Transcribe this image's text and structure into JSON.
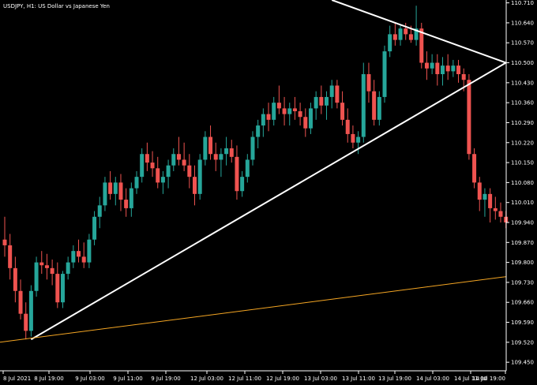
{
  "chart_data": {
    "type": "candlestick",
    "title": "USDJPY, H1:  US Dollar vs Japanese Yen",
    "ylim": [
      109.42,
      110.72
    ],
    "y_ticks": [
      "110.710",
      "110.640",
      "110.570",
      "110.500",
      "110.430",
      "110.360",
      "110.290",
      "110.220",
      "110.150",
      "110.080",
      "110.010",
      "109.940",
      "109.870",
      "109.800",
      "109.730",
      "109.660",
      "109.590",
      "109.520",
      "109.450"
    ],
    "x_ticks": [
      "8 Jul 2021",
      "8 Jul 19:00",
      "9 Jul 03:00",
      "9 Jul 11:00",
      "9 Jul 19:00",
      "12 Jul 03:00",
      "12 Jul 11:00",
      "12 Jul 19:00",
      "13 Jul 03:00",
      "13 Jul 11:00",
      "13 Jul 19:00",
      "14 Jul 03:00",
      "14 Jul 11:00",
      "14 Jul 19:00"
    ],
    "colors": {
      "up": "#26a69a",
      "down": "#ef5350",
      "trendline": "#ffffff",
      "support": "#f5a623",
      "axis": "#ffffff",
      "background": "#000000"
    },
    "candles": [
      {
        "o": 109.88,
        "h": 109.96,
        "l": 109.82,
        "c": 109.86
      },
      {
        "o": 109.86,
        "h": 109.9,
        "l": 109.74,
        "c": 109.78
      },
      {
        "o": 109.78,
        "h": 109.82,
        "l": 109.66,
        "c": 109.7
      },
      {
        "o": 109.7,
        "h": 109.74,
        "l": 109.6,
        "c": 109.62
      },
      {
        "o": 109.62,
        "h": 109.66,
        "l": 109.53,
        "c": 109.56
      },
      {
        "o": 109.56,
        "h": 109.72,
        "l": 109.54,
        "c": 109.7
      },
      {
        "o": 109.7,
        "h": 109.82,
        "l": 109.68,
        "c": 109.8
      },
      {
        "o": 109.8,
        "h": 109.84,
        "l": 109.76,
        "c": 109.79
      },
      {
        "o": 109.79,
        "h": 109.83,
        "l": 109.74,
        "c": 109.78
      },
      {
        "o": 109.78,
        "h": 109.81,
        "l": 109.72,
        "c": 109.76
      },
      {
        "o": 109.76,
        "h": 109.8,
        "l": 109.64,
        "c": 109.66
      },
      {
        "o": 109.66,
        "h": 109.77,
        "l": 109.64,
        "c": 109.76
      },
      {
        "o": 109.76,
        "h": 109.82,
        "l": 109.74,
        "c": 109.8
      },
      {
        "o": 109.8,
        "h": 109.86,
        "l": 109.78,
        "c": 109.84
      },
      {
        "o": 109.84,
        "h": 109.88,
        "l": 109.8,
        "c": 109.82
      },
      {
        "o": 109.82,
        "h": 109.87,
        "l": 109.78,
        "c": 109.8
      },
      {
        "o": 109.8,
        "h": 109.9,
        "l": 109.78,
        "c": 109.88
      },
      {
        "o": 109.88,
        "h": 109.98,
        "l": 109.86,
        "c": 109.96
      },
      {
        "o": 109.96,
        "h": 110.03,
        "l": 109.92,
        "c": 110.0
      },
      {
        "o": 110.0,
        "h": 110.1,
        "l": 109.98,
        "c": 110.08
      },
      {
        "o": 110.08,
        "h": 110.12,
        "l": 110.02,
        "c": 110.04
      },
      {
        "o": 110.04,
        "h": 110.1,
        "l": 110.0,
        "c": 110.08
      },
      {
        "o": 110.08,
        "h": 110.11,
        "l": 109.98,
        "c": 110.02
      },
      {
        "o": 110.02,
        "h": 110.06,
        "l": 109.96,
        "c": 109.99
      },
      {
        "o": 109.99,
        "h": 110.08,
        "l": 109.96,
        "c": 110.06
      },
      {
        "o": 110.06,
        "h": 110.12,
        "l": 110.04,
        "c": 110.1
      },
      {
        "o": 110.1,
        "h": 110.2,
        "l": 110.08,
        "c": 110.18
      },
      {
        "o": 110.18,
        "h": 110.22,
        "l": 110.12,
        "c": 110.15
      },
      {
        "o": 110.15,
        "h": 110.19,
        "l": 110.1,
        "c": 110.13
      },
      {
        "o": 110.13,
        "h": 110.17,
        "l": 110.06,
        "c": 110.08
      },
      {
        "o": 110.08,
        "h": 110.12,
        "l": 110.04,
        "c": 110.1
      },
      {
        "o": 110.1,
        "h": 110.16,
        "l": 110.06,
        "c": 110.14
      },
      {
        "o": 110.14,
        "h": 110.2,
        "l": 110.12,
        "c": 110.18
      },
      {
        "o": 110.18,
        "h": 110.24,
        "l": 110.14,
        "c": 110.16
      },
      {
        "o": 110.16,
        "h": 110.22,
        "l": 110.12,
        "c": 110.14
      },
      {
        "o": 110.14,
        "h": 110.18,
        "l": 110.06,
        "c": 110.1
      },
      {
        "o": 110.1,
        "h": 110.14,
        "l": 110.0,
        "c": 110.04
      },
      {
        "o": 110.04,
        "h": 110.18,
        "l": 110.02,
        "c": 110.16
      },
      {
        "o": 110.16,
        "h": 110.26,
        "l": 110.14,
        "c": 110.24
      },
      {
        "o": 110.24,
        "h": 110.28,
        "l": 110.16,
        "c": 110.18
      },
      {
        "o": 110.18,
        "h": 110.22,
        "l": 110.12,
        "c": 110.16
      },
      {
        "o": 110.16,
        "h": 110.2,
        "l": 110.1,
        "c": 110.18
      },
      {
        "o": 110.18,
        "h": 110.24,
        "l": 110.14,
        "c": 110.2
      },
      {
        "o": 110.2,
        "h": 110.23,
        "l": 110.15,
        "c": 110.17
      },
      {
        "o": 110.17,
        "h": 110.21,
        "l": 110.02,
        "c": 110.05
      },
      {
        "o": 110.05,
        "h": 110.12,
        "l": 110.03,
        "c": 110.1
      },
      {
        "o": 110.1,
        "h": 110.18,
        "l": 110.08,
        "c": 110.16
      },
      {
        "o": 110.16,
        "h": 110.26,
        "l": 110.14,
        "c": 110.24
      },
      {
        "o": 110.24,
        "h": 110.3,
        "l": 110.2,
        "c": 110.28
      },
      {
        "o": 110.28,
        "h": 110.34,
        "l": 110.24,
        "c": 110.32
      },
      {
        "o": 110.32,
        "h": 110.36,
        "l": 110.26,
        "c": 110.3
      },
      {
        "o": 110.3,
        "h": 110.38,
        "l": 110.28,
        "c": 110.36
      },
      {
        "o": 110.36,
        "h": 110.42,
        "l": 110.32,
        "c": 110.34
      },
      {
        "o": 110.34,
        "h": 110.38,
        "l": 110.28,
        "c": 110.32
      },
      {
        "o": 110.32,
        "h": 110.36,
        "l": 110.28,
        "c": 110.34
      },
      {
        "o": 110.34,
        "h": 110.38,
        "l": 110.3,
        "c": 110.33
      },
      {
        "o": 110.33,
        "h": 110.36,
        "l": 110.28,
        "c": 110.31
      },
      {
        "o": 110.31,
        "h": 110.34,
        "l": 110.24,
        "c": 110.27
      },
      {
        "o": 110.27,
        "h": 110.36,
        "l": 110.25,
        "c": 110.34
      },
      {
        "o": 110.34,
        "h": 110.4,
        "l": 110.3,
        "c": 110.38
      },
      {
        "o": 110.38,
        "h": 110.42,
        "l": 110.32,
        "c": 110.35
      },
      {
        "o": 110.35,
        "h": 110.4,
        "l": 110.3,
        "c": 110.38
      },
      {
        "o": 110.38,
        "h": 110.44,
        "l": 110.34,
        "c": 110.42
      },
      {
        "o": 110.42,
        "h": 110.44,
        "l": 110.34,
        "c": 110.36
      },
      {
        "o": 110.36,
        "h": 110.4,
        "l": 110.28,
        "c": 110.3
      },
      {
        "o": 110.3,
        "h": 110.34,
        "l": 110.22,
        "c": 110.25
      },
      {
        "o": 110.25,
        "h": 110.28,
        "l": 110.2,
        "c": 110.22
      },
      {
        "o": 110.22,
        "h": 110.26,
        "l": 110.18,
        "c": 110.24
      },
      {
        "o": 110.24,
        "h": 110.5,
        "l": 110.22,
        "c": 110.46
      },
      {
        "o": 110.46,
        "h": 110.5,
        "l": 110.36,
        "c": 110.4
      },
      {
        "o": 110.4,
        "h": 110.44,
        "l": 110.28,
        "c": 110.3
      },
      {
        "o": 110.3,
        "h": 110.4,
        "l": 110.28,
        "c": 110.38
      },
      {
        "o": 110.38,
        "h": 110.56,
        "l": 110.36,
        "c": 110.54
      },
      {
        "o": 110.54,
        "h": 110.63,
        "l": 110.52,
        "c": 110.6
      },
      {
        "o": 110.6,
        "h": 110.64,
        "l": 110.56,
        "c": 110.58
      },
      {
        "o": 110.58,
        "h": 110.63,
        "l": 110.56,
        "c": 110.62
      },
      {
        "o": 110.62,
        "h": 110.64,
        "l": 110.58,
        "c": 110.6
      },
      {
        "o": 110.6,
        "h": 110.63,
        "l": 110.57,
        "c": 110.58
      },
      {
        "o": 110.58,
        "h": 110.7,
        "l": 110.56,
        "c": 110.62
      },
      {
        "o": 110.62,
        "h": 110.64,
        "l": 110.48,
        "c": 110.5
      },
      {
        "o": 110.5,
        "h": 110.54,
        "l": 110.44,
        "c": 110.48
      },
      {
        "o": 110.48,
        "h": 110.53,
        "l": 110.46,
        "c": 110.5
      },
      {
        "o": 110.5,
        "h": 110.53,
        "l": 110.42,
        "c": 110.46
      },
      {
        "o": 110.46,
        "h": 110.52,
        "l": 110.42,
        "c": 110.49
      },
      {
        "o": 110.49,
        "h": 110.53,
        "l": 110.44,
        "c": 110.47
      },
      {
        "o": 110.47,
        "h": 110.51,
        "l": 110.45,
        "c": 110.49
      },
      {
        "o": 110.49,
        "h": 110.51,
        "l": 110.43,
        "c": 110.46
      },
      {
        "o": 110.46,
        "h": 110.48,
        "l": 110.4,
        "c": 110.44
      },
      {
        "o": 110.44,
        "h": 110.46,
        "l": 110.16,
        "c": 110.18
      },
      {
        "o": 110.18,
        "h": 110.2,
        "l": 110.06,
        "c": 110.08
      },
      {
        "o": 110.08,
        "h": 110.1,
        "l": 109.98,
        "c": 110.02
      },
      {
        "o": 110.02,
        "h": 110.06,
        "l": 109.96,
        "c": 110.04
      },
      {
        "o": 110.04,
        "h": 110.06,
        "l": 109.94,
        "c": 109.99
      },
      {
        "o": 109.99,
        "h": 110.03,
        "l": 109.95,
        "c": 109.98
      },
      {
        "o": 109.98,
        "h": 110.01,
        "l": 109.94,
        "c": 109.96
      },
      {
        "o": 109.96,
        "h": 109.98,
        "l": 109.92,
        "c": 109.94
      }
    ],
    "lines": [
      {
        "name": "triangle-lower",
        "color": "white",
        "x1": 5,
        "y1": 109.53,
        "x2": 95,
        "y2": 110.5
      },
      {
        "name": "triangle-upper",
        "color": "white",
        "x1": 62,
        "y1": 110.72,
        "x2": 95,
        "y2": 110.5
      },
      {
        "name": "support",
        "color": "orange",
        "x1": -1,
        "y1": 109.52,
        "x2": 95,
        "y2": 109.75
      }
    ]
  }
}
